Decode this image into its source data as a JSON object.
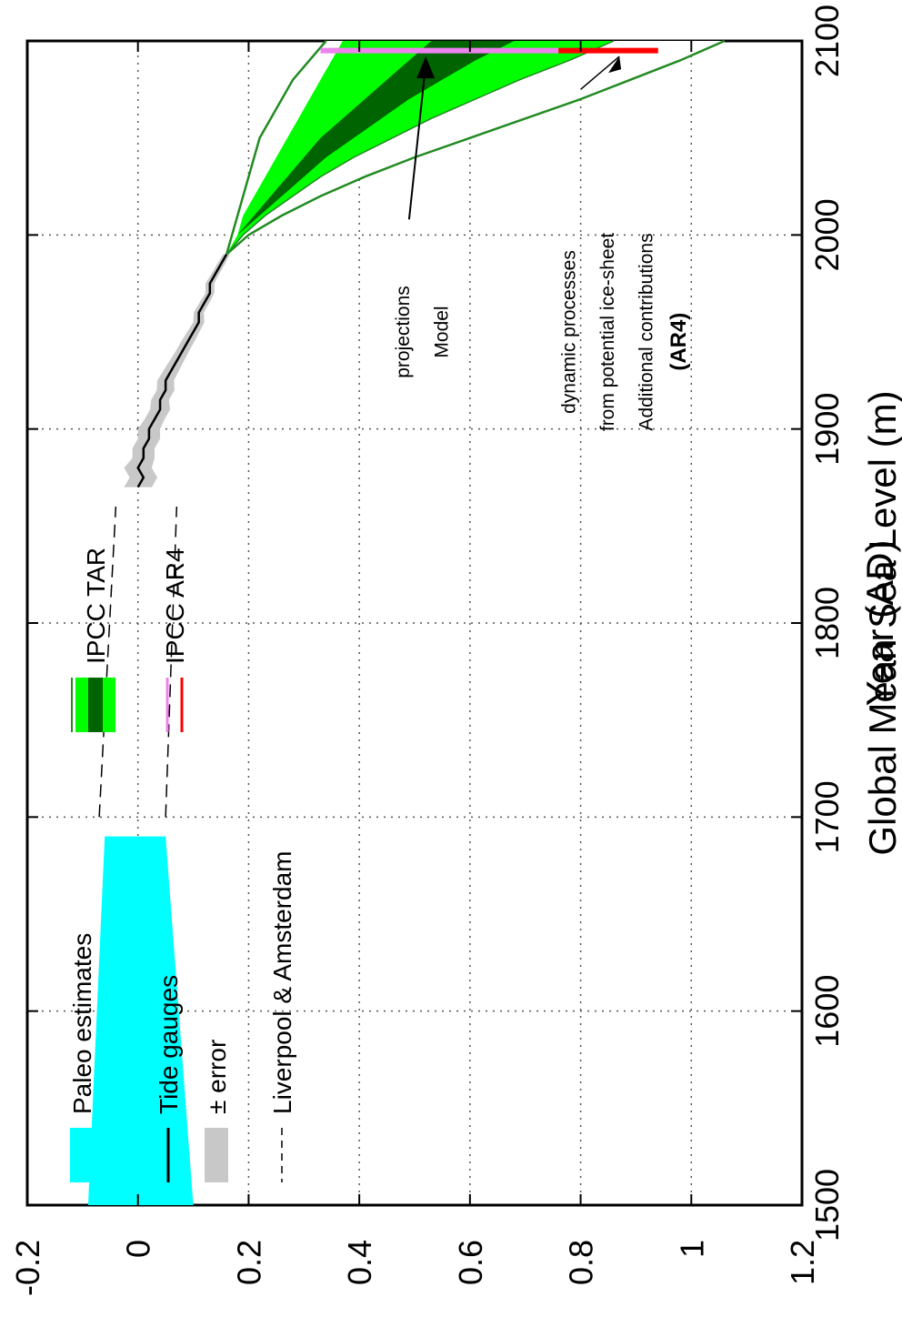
{
  "chart_data": {
    "type": "area",
    "xlabel": "Year (AD)",
    "ylabel": "Global Mean Sea Level (m)",
    "xlim": [
      1500,
      2100
    ],
    "ylim": [
      -0.2,
      1.2
    ],
    "xticks": [
      "1500",
      "1600",
      "1700",
      "1800",
      "1900",
      "2000",
      "2100"
    ],
    "yticks": [
      "-0.2",
      "0",
      "0.2",
      "0.4",
      "0.6",
      "0.8",
      "1",
      "1.2"
    ],
    "grid": true,
    "legend_position": "top-left",
    "legend": [
      {
        "label": "Paleo estimates",
        "style": "patch",
        "color": "#00ffff"
      },
      {
        "label": "Tide gauges",
        "style": "line",
        "color": "#000000"
      },
      {
        "label": "± error",
        "style": "patch",
        "color": "#c8c8c8"
      },
      {
        "label": "Liverpool & Amsterdam",
        "style": "dashed",
        "color": "#000000"
      },
      {
        "label": "IPCC TAR",
        "style": "bands",
        "colors": [
          "#228b22",
          "#00ff00",
          "#006400"
        ]
      },
      {
        "label": "IPCC AR4",
        "style": "lines",
        "colors": [
          "#ee82ee",
          "#ff0000"
        ]
      }
    ],
    "series": [
      {
        "name": "Paleo estimates",
        "kind": "band",
        "color": "#00ffff",
        "x": [
          1500,
          1690
        ],
        "lower": [
          -0.09,
          -0.06
        ],
        "upper": [
          0.1,
          0.05
        ]
      },
      {
        "name": "Liverpool & Amsterdam",
        "kind": "dashed-pair",
        "color": "#000000",
        "x": [
          1700,
          1860
        ],
        "lower": [
          -0.07,
          -0.04
        ],
        "upper": [
          0.05,
          0.07
        ]
      },
      {
        "name": "Tide gauges",
        "kind": "line",
        "color": "#000000",
        "error_color": "#c8c8c8",
        "x": [
          1870,
          1875,
          1880,
          1885,
          1890,
          1895,
          1900,
          1905,
          1910,
          1915,
          1920,
          1925,
          1930,
          1935,
          1940,
          1945,
          1950,
          1955,
          1960,
          1965,
          1970,
          1975,
          1980,
          1985,
          1990
        ],
        "y": [
          0.0,
          0.01,
          0.0,
          0.01,
          0.01,
          0.02,
          0.02,
          0.03,
          0.04,
          0.04,
          0.05,
          0.05,
          0.06,
          0.07,
          0.08,
          0.09,
          0.1,
          0.11,
          0.11,
          0.12,
          0.13,
          0.13,
          0.14,
          0.15,
          0.16
        ],
        "error": [
          0.025,
          0.025,
          0.025,
          0.02,
          0.02,
          0.02,
          0.02,
          0.018,
          0.018,
          0.016,
          0.016,
          0.015,
          0.014,
          0.013,
          0.012,
          0.012,
          0.011,
          0.01,
          0.009,
          0.009,
          0.008,
          0.008,
          0.007,
          0.007,
          0.006
        ]
      },
      {
        "name": "IPCC TAR",
        "kind": "nested-bands",
        "x": [
          1990,
          2000,
          2010,
          2020,
          2030,
          2040,
          2050,
          2060,
          2070,
          2080,
          2090,
          2100
        ],
        "outer_lower": [
          0.16,
          0.17,
          0.18,
          0.19,
          0.2,
          0.21,
          0.22,
          0.24,
          0.26,
          0.28,
          0.31,
          0.34
        ],
        "outer_upper": [
          0.16,
          0.2,
          0.26,
          0.33,
          0.41,
          0.5,
          0.6,
          0.7,
          0.8,
          0.89,
          0.98,
          1.06
        ],
        "light_lower": [
          0.16,
          0.18,
          0.19,
          0.21,
          0.23,
          0.25,
          0.27,
          0.29,
          0.31,
          0.33,
          0.35,
          0.37
        ],
        "light_upper": [
          0.16,
          0.19,
          0.23,
          0.28,
          0.33,
          0.39,
          0.46,
          0.53,
          0.61,
          0.69,
          0.78,
          0.86
        ],
        "dark_lower": [
          0.16,
          0.18,
          0.21,
          0.24,
          0.27,
          0.3,
          0.33,
          0.37,
          0.41,
          0.45,
          0.49,
          0.53
        ],
        "dark_upper": [
          0.16,
          0.18,
          0.22,
          0.26,
          0.3,
          0.34,
          0.39,
          0.44,
          0.49,
          0.55,
          0.61,
          0.68
        ],
        "colors": {
          "outer": "#00ff00",
          "light": "#00cc00",
          "dark": "#006400",
          "edge": "#228b22"
        }
      },
      {
        "name": "IPCC AR4",
        "kind": "bars-at-2095",
        "x": 2095,
        "model_projections": {
          "lower": 0.33,
          "upper": 0.76,
          "color": "#ee82ee"
        },
        "ice_sheet_contributions": {
          "lower": 0.76,
          "upper": 0.94,
          "color": "#ff0000"
        }
      }
    ],
    "annotations": [
      {
        "text": "(AR4)",
        "bold": true,
        "x": 1945,
        "y": 0.99
      },
      {
        "text": "Additional contributions",
        "x": 1950,
        "y": 0.93
      },
      {
        "text": "from potential ice-sheet",
        "x": 1950,
        "y": 0.86
      },
      {
        "text": "dynamic processes",
        "x": 1950,
        "y": 0.79
      },
      {
        "text": "Model",
        "x": 1950,
        "y": 0.56
      },
      {
        "text": "projections",
        "x": 1950,
        "y": 0.49
      }
    ]
  }
}
